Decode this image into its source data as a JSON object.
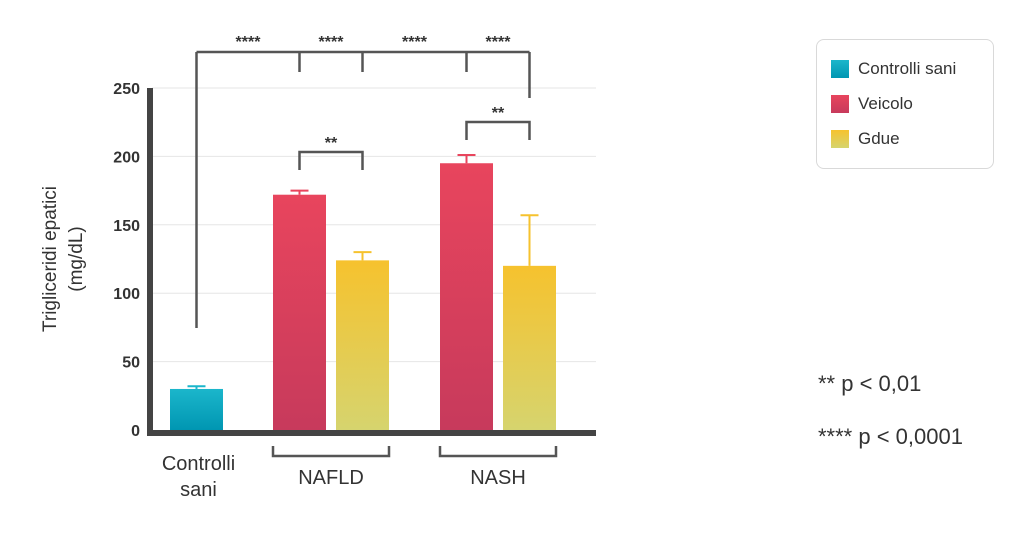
{
  "chart_data": {
    "type": "bar",
    "ylabel": "Trigliceridi epatici",
    "ylabel_unit": "(mg/dL)",
    "ylim": [
      0,
      250
    ],
    "yticks": [
      0,
      50,
      100,
      150,
      200,
      250
    ],
    "grid": true,
    "groups": [
      {
        "label_lines": [
          "Controlli",
          "sani"
        ],
        "bracket": false,
        "bars": [
          {
            "series": "Controlli sani",
            "value": 30,
            "error": 2
          }
        ]
      },
      {
        "label_lines": [
          "NAFLD"
        ],
        "bracket": true,
        "bars": [
          {
            "series": "Veicolo",
            "value": 172,
            "error": 3
          },
          {
            "series": "Gdue",
            "value": 124,
            "error": 6
          }
        ]
      },
      {
        "label_lines": [
          "NASH"
        ],
        "bracket": true,
        "bars": [
          {
            "series": "Veicolo",
            "value": 195,
            "error": 6
          },
          {
            "series": "Gdue",
            "value": 120,
            "error": 37
          }
        ]
      }
    ],
    "series": [
      {
        "name": "Controlli sani",
        "color_top": "#1bb6cb",
        "color_bottom": "#0096b2"
      },
      {
        "name": "Veicolo",
        "color_top": "#e8455d",
        "color_bottom": "#c73a5c"
      },
      {
        "name": "Gdue",
        "color_top": "#f6c22e",
        "color_bottom": "#d6d46e"
      }
    ],
    "significance": {
      "top_labels": [
        "****",
        "****",
        "****",
        "****"
      ],
      "inner_labels": [
        "**",
        "**"
      ]
    },
    "legend_position": "top-right",
    "footnotes": [
      "** p < 0,01",
      "**** p < 0,0001"
    ]
  }
}
